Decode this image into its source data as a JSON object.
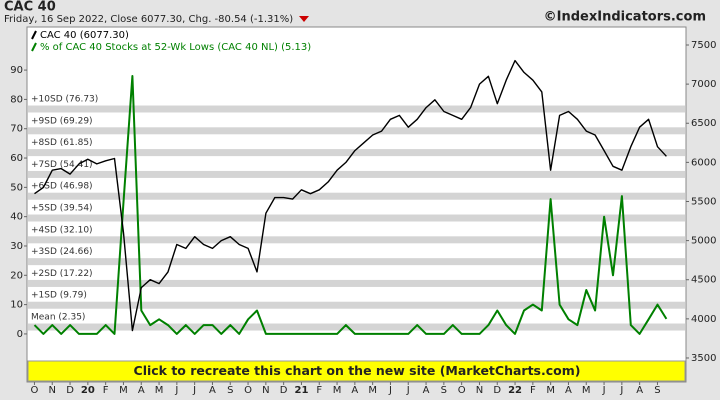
{
  "chart_data": {
    "type": "line",
    "title": "CAC 40",
    "subtitle": "Friday, 16 Sep 2022, Close 6077.30, Chg. -80.54 (-1.31%)",
    "source": "©IndexIndicators.com",
    "banner": "Click to recreate this chart on the new site (MarketCharts.com)",
    "categories": [
      "O",
      null,
      "N",
      null,
      "D",
      null,
      "20",
      null,
      "F",
      null,
      "M",
      null,
      "A",
      null,
      "M",
      null,
      "J",
      null,
      "J",
      null,
      "A",
      null,
      "S",
      null,
      "O",
      null,
      "N",
      null,
      "D",
      null,
      "21",
      null,
      "F",
      null,
      "M",
      null,
      "A",
      null,
      "M",
      null,
      "J",
      null,
      "J",
      null,
      "A",
      null,
      "S",
      null,
      "O",
      null,
      "N",
      null,
      "D",
      null,
      "22",
      null,
      "F",
      null,
      "M",
      null,
      "A",
      null,
      "M",
      null,
      "J",
      null,
      "J",
      null,
      "A",
      null,
      "S",
      null
    ],
    "series": [
      {
        "name": "CAC 40 (6077.30)",
        "color": "#000000",
        "axis": "y2",
        "values": [
          5600,
          5680,
          5900,
          5920,
          5850,
          5980,
          6040,
          5980,
          6020,
          6050,
          5100,
          3850,
          4400,
          4500,
          4450,
          4600,
          4950,
          4900,
          5050,
          4950,
          4900,
          5000,
          5050,
          4950,
          4900,
          4600,
          5350,
          5550,
          5550,
          5530,
          5650,
          5600,
          5650,
          5750,
          5900,
          6000,
          6150,
          6250,
          6350,
          6400,
          6550,
          6600,
          6450,
          6550,
          6700,
          6800,
          6650,
          6600,
          6550,
          6700,
          7000,
          7100,
          6750,
          7050,
          7300,
          7150,
          7050,
          6900,
          5900,
          6600,
          6650,
          6550,
          6400,
          6350,
          6150,
          5950,
          5900,
          6200,
          6450,
          6550,
          6200,
          6077.3
        ]
      },
      {
        "name": "% of CAC 40 Stocks at 52-Wk Lows (CAC 40 NL) (5.13)",
        "color": "#008000",
        "values": [
          3,
          0,
          3,
          0,
          3,
          0,
          0,
          0,
          3,
          0,
          45,
          88,
          8,
          3,
          5,
          3,
          0,
          3,
          0,
          3,
          3,
          0,
          3,
          0,
          5,
          8,
          0,
          0,
          0,
          0,
          0,
          0,
          0,
          0,
          0,
          3,
          0,
          0,
          0,
          0,
          0,
          0,
          0,
          3,
          0,
          0,
          0,
          3,
          0,
          0,
          0,
          3,
          8,
          3,
          0,
          8,
          10,
          8,
          46,
          10,
          5,
          3,
          15,
          8,
          40,
          20,
          47,
          3,
          0,
          5,
          10,
          5.13
        ]
      }
    ],
    "ylim": [
      -16.4,
      104.7
    ],
    "yticks": [
      0,
      10,
      20,
      30,
      40,
      50,
      60,
      70,
      80,
      90
    ],
    "y2lim": [
      3193,
      7730
    ],
    "y2ticks": [
      3500,
      4000,
      4500,
      5000,
      5500,
      6000,
      6500,
      7000,
      7500
    ],
    "bands": [
      {
        "label": "Mean (2.35)",
        "value": 2.35
      },
      {
        "label": "+1SD (9.79)",
        "value": 9.79
      },
      {
        "label": "+2SD (17.22)",
        "value": 17.22
      },
      {
        "label": "+3SD (24.66)",
        "value": 24.66
      },
      {
        "label": "+4SD (32.10)",
        "value": 32.1
      },
      {
        "label": "+5SD (39.54)",
        "value": 39.54
      },
      {
        "label": "+6SD (46.98)",
        "value": 46.98
      },
      {
        "label": "+7SD (54.41)",
        "value": 54.41
      },
      {
        "label": "+8SD (61.85)",
        "value": 61.85
      },
      {
        "label": "+9SD (69.29)",
        "value": 69.29
      },
      {
        "label": "+10SD (76.73)",
        "value": 76.73
      }
    ]
  }
}
